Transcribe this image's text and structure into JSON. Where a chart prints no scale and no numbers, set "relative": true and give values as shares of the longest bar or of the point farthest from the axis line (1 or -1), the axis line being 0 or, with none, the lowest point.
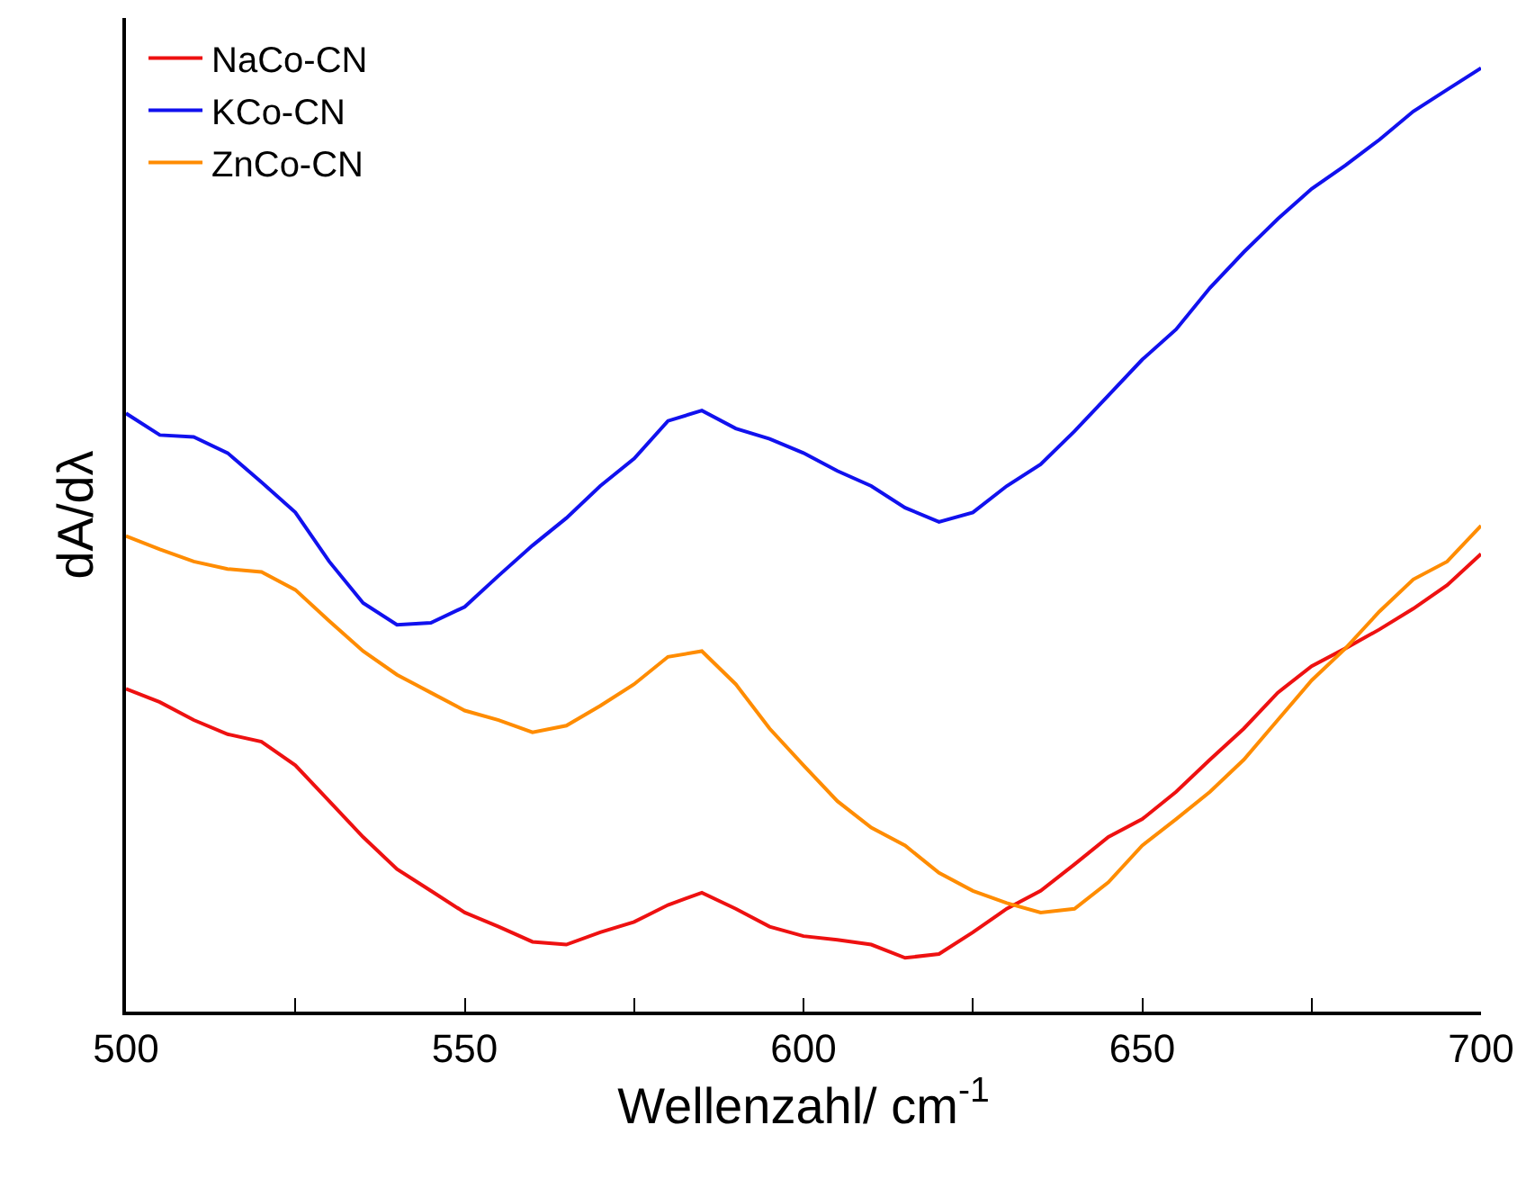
{
  "chart_data": {
    "type": "line",
    "xlabel": "Wellenzahl/ cm$^{-1}$",
    "ylabel": "dA/dλ",
    "relative": true,
    "legend": "top left",
    "grid": false,
    "marker": "none",
    "line_style": "solid",
    "xlim": [
      500,
      700
    ],
    "xticks": [
      500,
      {
        "value": 525,
        "label": null
      },
      550,
      {
        "value": 575,
        "label": null
      },
      600,
      {
        "value": 625,
        "label": null
      },
      650,
      {
        "value": 675,
        "label": null
      },
      700
    ],
    "x": [
      500,
      505,
      510,
      515,
      520,
      525,
      530,
      535,
      540,
      545,
      550,
      555,
      560,
      565,
      570,
      575,
      580,
      585,
      590,
      595,
      600,
      605,
      610,
      615,
      620,
      625,
      630,
      635,
      640,
      645,
      650,
      655,
      660,
      665,
      670,
      675,
      680,
      685,
      690,
      695,
      700
    ],
    "series": [
      {
        "name": "NaCo-CN",
        "color": "#ee1111",
        "values": [
          0.342,
          0.328,
          0.309,
          0.294,
          0.286,
          0.261,
          0.223,
          0.185,
          0.151,
          0.128,
          0.105,
          0.09,
          0.074,
          0.071,
          0.084,
          0.095,
          0.113,
          0.126,
          0.109,
          0.09,
          0.08,
          0.076,
          0.071,
          0.057,
          0.061,
          0.084,
          0.109,
          0.128,
          0.156,
          0.185,
          0.204,
          0.233,
          0.267,
          0.3,
          0.338,
          0.366,
          0.385,
          0.405,
          0.427,
          0.452,
          0.485
        ]
      },
      {
        "name": "KCo-CN",
        "color": "#1111ee",
        "values": [
          0.634,
          0.611,
          0.609,
          0.592,
          0.561,
          0.529,
          0.477,
          0.433,
          0.41,
          0.412,
          0.429,
          0.462,
          0.494,
          0.523,
          0.557,
          0.586,
          0.626,
          0.637,
          0.618,
          0.607,
          0.592,
          0.573,
          0.557,
          0.534,
          0.519,
          0.529,
          0.557,
          0.58,
          0.615,
          0.653,
          0.691,
          0.723,
          0.767,
          0.805,
          0.84,
          0.872,
          0.897,
          0.924,
          0.954,
          0.977,
          1
        ]
      },
      {
        "name": "ZnCo-CN",
        "color": "#ff8c00",
        "values": [
          0.504,
          0.49,
          0.477,
          0.469,
          0.466,
          0.447,
          0.414,
          0.382,
          0.357,
          0.338,
          0.319,
          0.309,
          0.296,
          0.303,
          0.324,
          0.347,
          0.376,
          0.382,
          0.347,
          0.3,
          0.261,
          0.223,
          0.195,
          0.176,
          0.147,
          0.128,
          0.115,
          0.105,
          0.109,
          0.137,
          0.176,
          0.204,
          0.233,
          0.267,
          0.309,
          0.351,
          0.385,
          0.424,
          0.458,
          0.477,
          0.515
        ]
      }
    ]
  }
}
